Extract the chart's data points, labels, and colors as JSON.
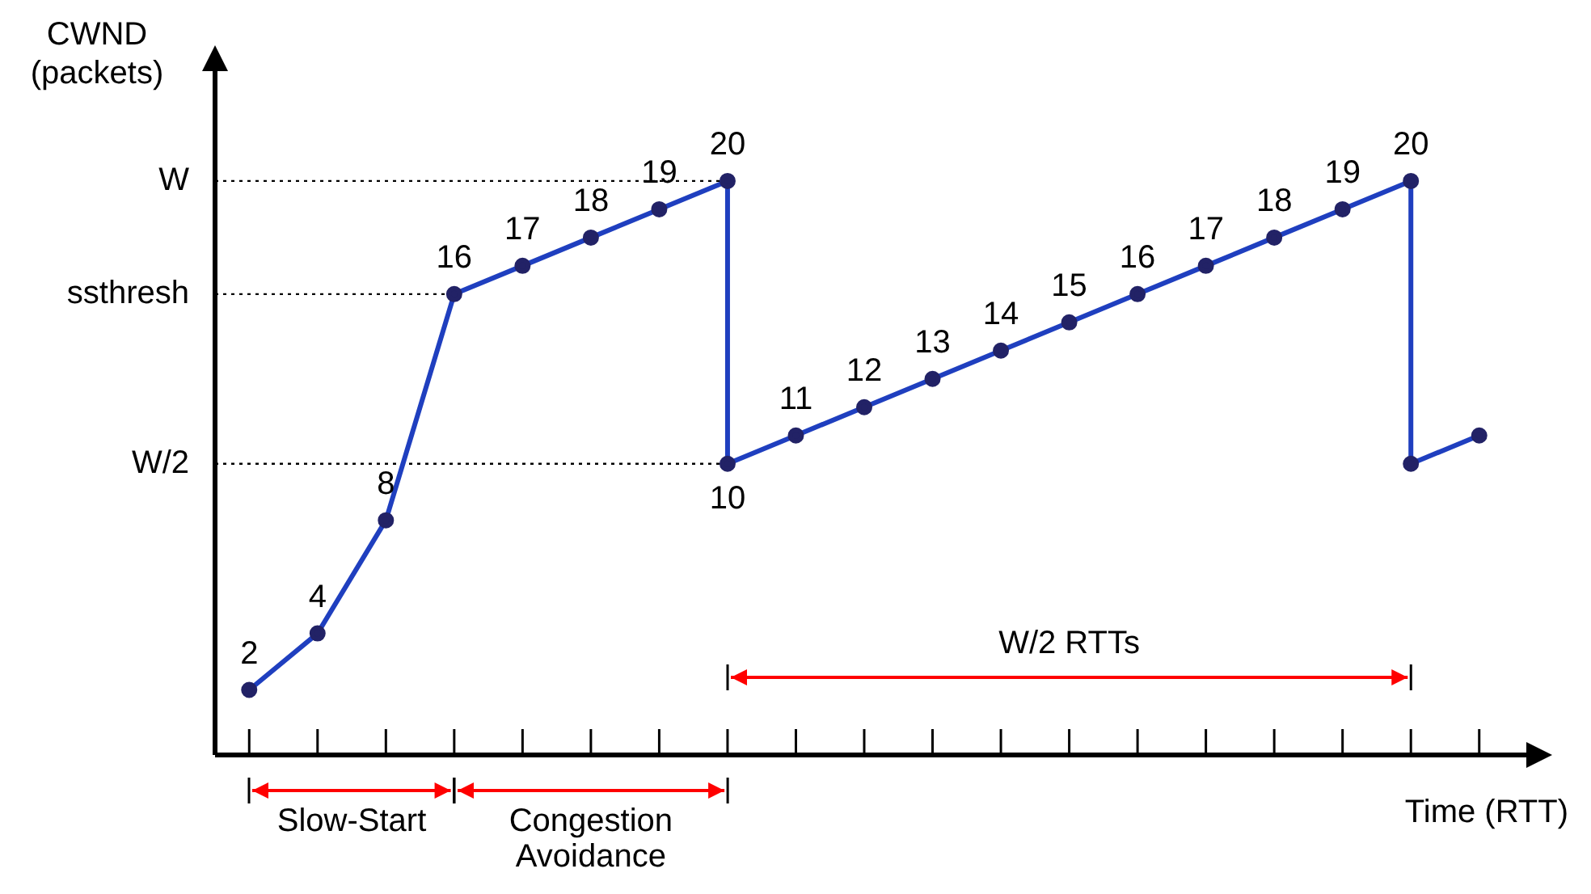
{
  "chart_data": {
    "type": "line",
    "xlabel": "Time (RTT)",
    "ylabel": "CWND (packets)",
    "categories": [
      null,
      null,
      null,
      null,
      null,
      null,
      null,
      null,
      null,
      null,
      null,
      null,
      null,
      null,
      null,
      null,
      null,
      null,
      null
    ],
    "series": [
      {
        "color": "#1f3fbf",
        "values": [
          2,
          4,
          8,
          16,
          17,
          18,
          19,
          20,
          null,
          null,
          null,
          null,
          null,
          null,
          null,
          null,
          null,
          null,
          null
        ],
        "value_labels": [
          "2",
          "4",
          "8",
          "16",
          "17",
          "18",
          "19",
          "20",
          null,
          null,
          null,
          null,
          null,
          null,
          null,
          null,
          null,
          null,
          null
        ]
      },
      {
        "color": "#1f3fbf",
        "values": [
          null,
          null,
          null,
          null,
          null,
          null,
          null,
          10,
          11,
          12,
          13,
          14,
          15,
          16,
          17,
          18,
          19,
          20,
          null
        ],
        "value_labels": [
          null,
          null,
          null,
          null,
          null,
          null,
          null,
          "10",
          "11",
          "12",
          "13",
          "14",
          "15",
          "16",
          "17",
          "18",
          "19",
          "20",
          null
        ]
      },
      {
        "color": "#1f3fbf",
        "values": [
          null,
          null,
          null,
          null,
          null,
          null,
          null,
          null,
          null,
          null,
          null,
          null,
          null,
          null,
          null,
          null,
          null,
          10,
          11
        ]
      }
    ],
    "marker": "circle",
    "line_style": "solid",
    "ylim": [
      -0.3,
      24
    ],
    "tick_labels": false,
    "ref_lines": [
      {
        "axis": "y",
        "value": 20,
        "label": "W",
        "color": "#000000",
        "line_style": "dotted"
      },
      {
        "axis": "y",
        "value": 16,
        "label": "ssthresh",
        "color": "#000000",
        "line_style": "dotted"
      },
      {
        "axis": "y",
        "value": 10,
        "label": "W/2",
        "color": "#000000",
        "line_style": "dotted"
      }
    ],
    "annotations": [
      "Slow-Start",
      "Congestion Avoidance",
      "W/2 RTTs"
    ]
  }
}
